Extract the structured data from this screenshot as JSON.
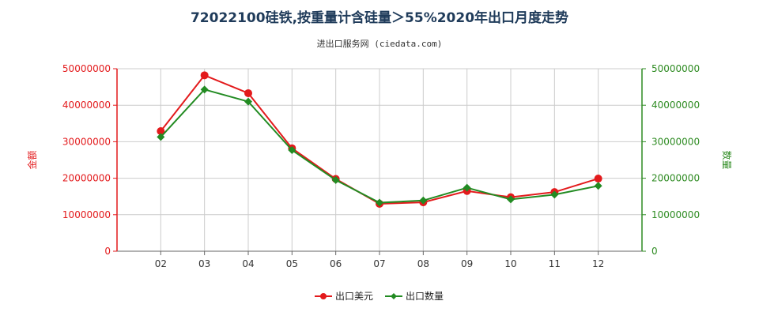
{
  "header": {
    "title": "72022100硅铁,按重量计含硅量＞55%2020年出口月度走势",
    "subtitle": "进出口服务网 (ciedata.com)"
  },
  "chart_data": {
    "type": "line",
    "categories": [
      "02",
      "03",
      "04",
      "05",
      "06",
      "07",
      "08",
      "09",
      "10",
      "11",
      "12"
    ],
    "series": [
      {
        "name": "出口美元",
        "axis": "left",
        "color": "#e31a1c",
        "values": [
          32900000,
          48200000,
          43300000,
          28200000,
          19800000,
          13000000,
          13400000,
          16500000,
          14800000,
          16200000,
          19900000
        ]
      },
      {
        "name": "出口数量",
        "axis": "right",
        "color": "#228b22",
        "values": [
          31300000,
          44300000,
          41000000,
          27700000,
          19500000,
          13300000,
          13900000,
          17400000,
          14200000,
          15500000,
          17900000
        ]
      }
    ],
    "ylabel_left": "金额",
    "ylabel_right": "数量",
    "ylim": [
      0,
      50000000
    ],
    "yticks": [
      "0",
      "10000000",
      "20000000",
      "30000000",
      "40000000",
      "50000000"
    ],
    "yticks_right": [
      "0",
      "10000000",
      "20000000",
      "30000000",
      "40000000",
      "50000000"
    ],
    "grid": true,
    "legend_position": "bottom"
  }
}
